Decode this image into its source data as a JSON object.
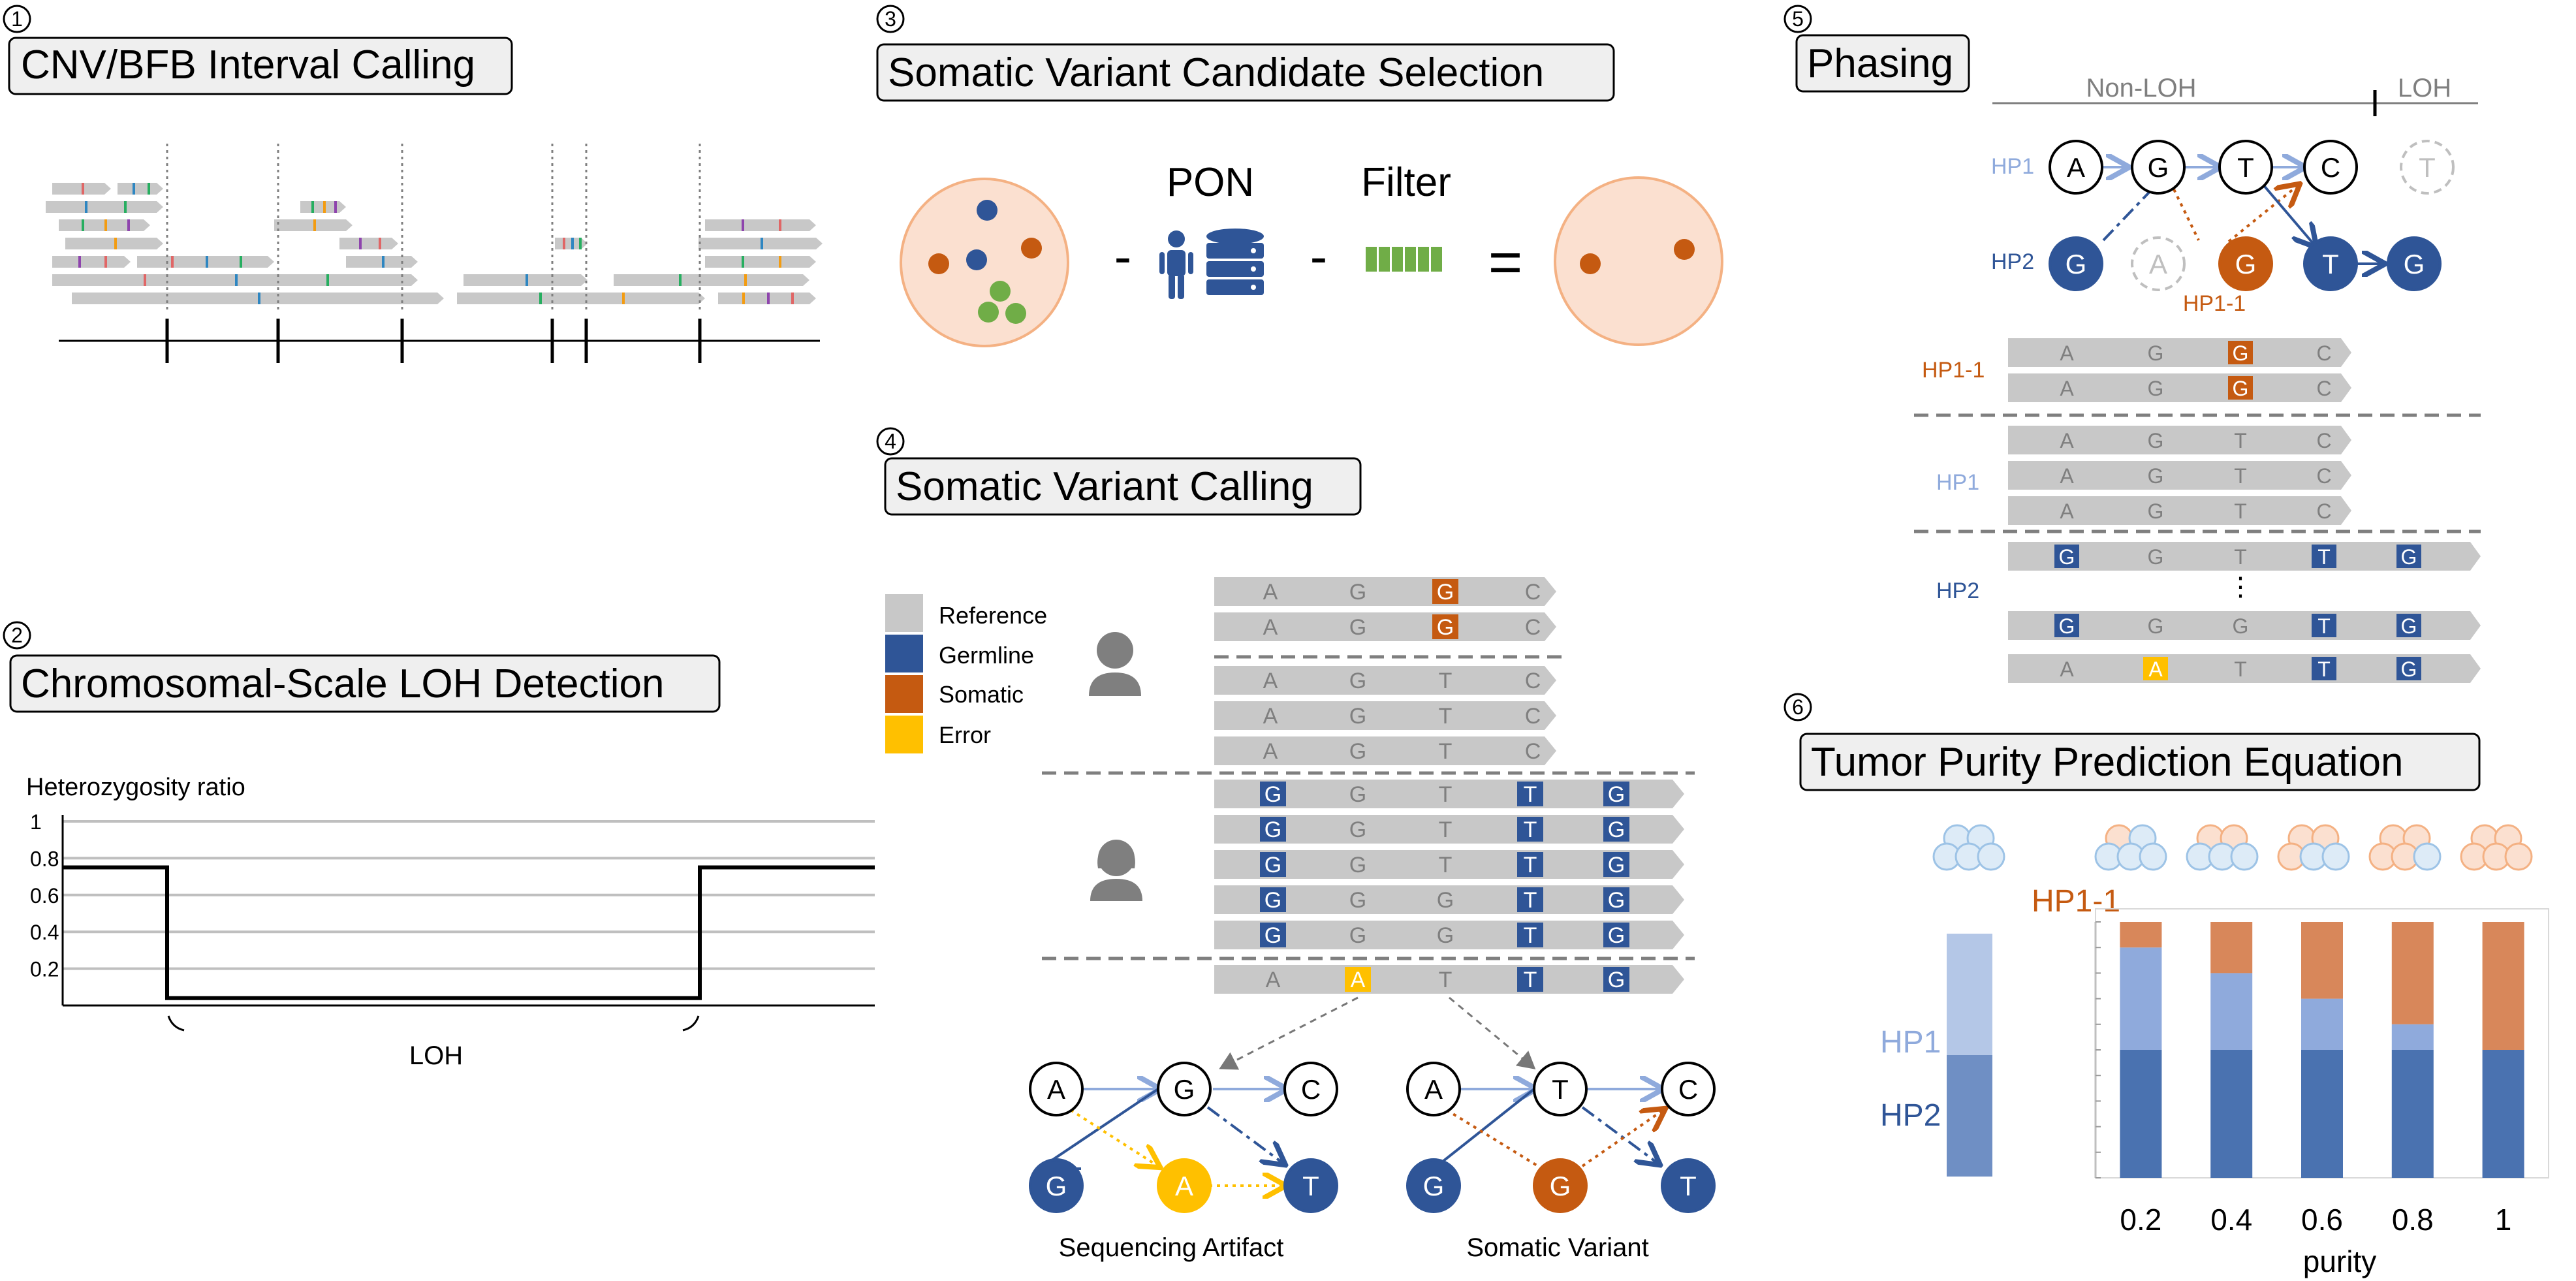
{
  "panels": {
    "p1": {
      "num": "1",
      "title": "CNV/BFB Interval Calling"
    },
    "p2": {
      "num": "2",
      "title": "Chromosomal-Scale LOH Detection",
      "ylabel": "Heterozygosity ratio",
      "yticks": [
        "1",
        "0.8",
        "0.6",
        "0.4",
        "0.2"
      ],
      "region_label": "LOH"
    },
    "p3": {
      "num": "3",
      "title": "Somatic Variant Candidate Selection",
      "pon": "PON",
      "filter": "Filter",
      "minus": "-",
      "equals": "="
    },
    "p4": {
      "num": "4",
      "title": "Somatic Variant Calling",
      "legend": [
        {
          "label": "Reference",
          "color": "#c8c8c8"
        },
        {
          "label": "Germline",
          "color": "#2f5597"
        },
        {
          "label": "Somatic",
          "color": "#c55a11"
        },
        {
          "label": "Error",
          "color": "#ffc000"
        }
      ],
      "left_graph_label": "Sequencing Artifact",
      "right_graph_label": "Somatic Variant"
    },
    "p5": {
      "num": "5",
      "title": "Phasing",
      "non_loh": "Non-LOH",
      "loh": "LOH",
      "hp1": "HP1",
      "hp2": "HP2",
      "hp1_1": "HP1-1",
      "ellipsis": "⋮"
    },
    "p6": {
      "num": "6",
      "title": "Tumor Purity Prediction Equation",
      "hp1_1": "HP1-1",
      "hp1": "HP1",
      "hp2": "HP2",
      "xlabel": "purity"
    }
  },
  "bases": {
    "A": "A",
    "G": "G",
    "T": "T",
    "C": "C"
  },
  "colors": {
    "reference": "#c8c8c8",
    "germline": "#2f5597",
    "somatic": "#c55a11",
    "error": "#ffc000",
    "hp1_light": "#8faadc",
    "hp2_dark": "#4a72b0",
    "somatic_light": "#d8875a",
    "cell_fill": "#fbe0d0",
    "cell_edge": "#f4b183"
  },
  "chart_data": {
    "type": "bar",
    "title": "Tumor Purity Prediction Equation",
    "xlabel": "purity",
    "categories": [
      "0.2",
      "0.4",
      "0.6",
      "0.8",
      "1"
    ],
    "series": [
      {
        "name": "HP2",
        "values": [
          5,
          5,
          5,
          5,
          5
        ]
      },
      {
        "name": "HP1",
        "values": [
          4,
          3,
          2,
          1,
          0
        ]
      },
      {
        "name": "HP1-1",
        "values": [
          1,
          2,
          3,
          4,
          5
        ]
      }
    ],
    "ylim": [
      0,
      10
    ]
  }
}
